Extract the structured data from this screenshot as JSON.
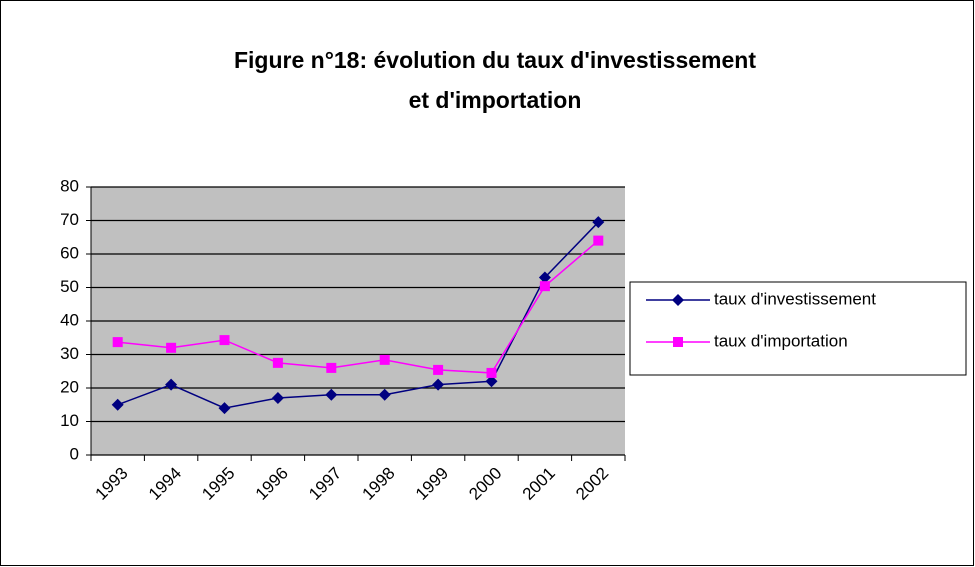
{
  "chart_data": {
    "type": "line",
    "title": [
      "Figure n°18: évolution du taux d'investissement",
      "et d'importation"
    ],
    "categories": [
      "1993",
      "1994",
      "1995",
      "1996",
      "1997",
      "1998",
      "1999",
      "2000",
      "2001",
      "2002"
    ],
    "series": [
      {
        "name": "taux d'investissement",
        "color": "#000080",
        "marker": "diamond",
        "values": [
          15,
          21,
          14,
          17,
          18,
          18,
          21,
          22,
          53,
          69.5
        ]
      },
      {
        "name": "taux d'importation",
        "color": "#ff00ff",
        "marker": "square",
        "values": [
          33.7,
          32,
          34.3,
          27.5,
          26,
          28.4,
          25.4,
          24.5,
          50.4,
          64
        ]
      }
    ],
    "ylim": [
      0,
      80
    ],
    "yticks": [
      0,
      10,
      20,
      30,
      40,
      50,
      60,
      70,
      80
    ],
    "grid": true,
    "legend": "right"
  }
}
